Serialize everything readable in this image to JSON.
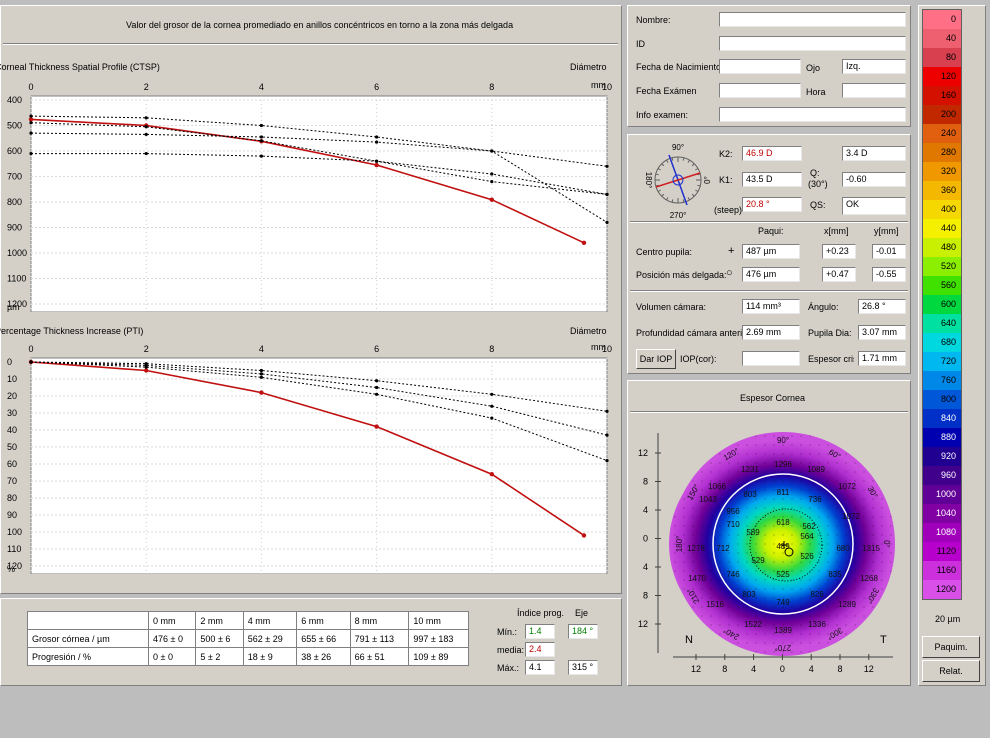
{
  "header": {
    "title": "Valor del grosor de la cornea promediado en anillos concéntricos en torno a la zona más delgada"
  },
  "ctsp": {
    "title": "Corneal Thickness Spatial Profile (CTSP)",
    "right_label": "Diámetro",
    "unit": "mm",
    "y_unit": "µm",
    "x_ticks": [
      "0",
      "2",
      "4",
      "6",
      "8",
      "10"
    ],
    "y_ticks": [
      "400",
      "500",
      "600",
      "700",
      "800",
      "900",
      "1000",
      "1100",
      "1200"
    ]
  },
  "pti": {
    "title": "Percentage Thickness Increase (PTI)",
    "right_label": "Diámetro",
    "unit": "mm",
    "y_unit": "%",
    "x_ticks": [
      "0",
      "2",
      "4",
      "6",
      "8",
      "10"
    ],
    "y_ticks": [
      "0",
      "10",
      "20",
      "30",
      "40",
      "50",
      "60",
      "70",
      "80",
      "90",
      "100",
      "110",
      "120"
    ]
  },
  "chart_data": [
    {
      "type": "line",
      "title": "Corneal Thickness Spatial Profile (CTSP)",
      "xlabel": "Diámetro mm",
      "ylabel": "µm",
      "xlim": [
        0,
        10
      ],
      "ylim": [
        1200,
        400
      ],
      "series": [
        {
          "style": "red-solid",
          "x": [
            0,
            2,
            4,
            6,
            8,
            9.6
          ],
          "values": [
            476,
            500,
            562,
            655,
            791,
            960
          ]
        },
        {
          "style": "dotted",
          "x": [
            0,
            2,
            4,
            6,
            8,
            10
          ],
          "values": [
            463,
            470,
            500,
            545,
            600,
            660
          ]
        },
        {
          "style": "dotted",
          "x": [
            0,
            2,
            4,
            6,
            8,
            10
          ],
          "values": [
            489,
            505,
            560,
            640,
            720,
            770
          ]
        },
        {
          "style": "dotted",
          "x": [
            0,
            2,
            4,
            6,
            8,
            10
          ],
          "values": [
            530,
            535,
            545,
            565,
            600,
            880
          ]
        },
        {
          "style": "dotted",
          "x": [
            0,
            2,
            4,
            6,
            8,
            10
          ],
          "values": [
            610,
            610,
            620,
            640,
            690,
            770
          ]
        }
      ]
    },
    {
      "type": "line",
      "title": "Percentage Thickness Increase (PTI)",
      "xlabel": "Diámetro mm",
      "ylabel": "%",
      "xlim": [
        0,
        10
      ],
      "ylim": [
        120,
        0
      ],
      "series": [
        {
          "style": "red-solid",
          "x": [
            0,
            2,
            4,
            6,
            8,
            9.6
          ],
          "values": [
            0,
            5,
            18,
            38,
            66,
            102
          ]
        },
        {
          "style": "dotted",
          "x": [
            0,
            2,
            4,
            6,
            8,
            10
          ],
          "values": [
            0,
            1,
            5,
            11,
            19,
            29
          ]
        },
        {
          "style": "dotted",
          "x": [
            0,
            2,
            4,
            6,
            8,
            10
          ],
          "values": [
            0,
            2,
            7,
            15,
            26,
            43
          ]
        },
        {
          "style": "dotted",
          "x": [
            0,
            2,
            4,
            6,
            8,
            10
          ],
          "values": [
            0,
            3,
            9,
            19,
            33,
            58
          ]
        }
      ]
    }
  ],
  "table": {
    "headers": [
      "",
      "0 mm",
      "2 mm",
      "4 mm",
      "6 mm",
      "8 mm",
      "10 mm"
    ],
    "rows": [
      [
        "Grosor córnea / µm",
        "476 ± 0",
        "500 ± 6",
        "562 ± 29",
        "655 ± 66",
        "791 ± 113",
        "997 ± 183"
      ],
      [
        "Progresión / %",
        "0 ± 0",
        "5 ± 2",
        "18 ± 9",
        "38 ± 26",
        "66 ± 51",
        "109 ± 89"
      ]
    ]
  },
  "progression": {
    "col1": "Índice prog.",
    "col2": "Eje",
    "min_label": "Mín.:",
    "min_value": "1.4",
    "min_axis": "184 °",
    "mean_label": "media:",
    "mean_value": "2.4",
    "max_label": "Máx.:",
    "max_value": "4.1",
    "max_axis": "315 °"
  },
  "patient": {
    "nombre_label": "Nombre:",
    "nombre_value": "",
    "id_label": "ID",
    "id_value": "",
    "fecha_nac_label": "Fecha de Nacimiento",
    "fecha_nac_value": "",
    "ojo_label": "Ojo",
    "ojo_value": "Izq.",
    "fecha_exam_label": "Fecha Exámen",
    "fecha_exam_value": "",
    "hora_label": "Hora",
    "hora_value": "",
    "info_label": "Info examen:",
    "info_value": ""
  },
  "keratometry": {
    "compass": {
      "top": "90°",
      "left": "180°",
      "bottom": "270°",
      "right": "0°"
    },
    "k2_label": "K2:",
    "k2_value": "46.9 D",
    "astig_value": "3.4 D",
    "k1_label": "K1:",
    "k1_value": "43.5 D",
    "q_label": "Q:",
    "q_sub": "(30°)",
    "q_value": "-0.60",
    "steep_label": "(steep)",
    "steep_value": "20.8 °",
    "qs_label": "QS:",
    "qs_value": "OK"
  },
  "pachy": {
    "col_paqui": "Paqui:",
    "col_x": "x[mm]",
    "col_y": "y[mm]",
    "centro_label": "Centro pupila:",
    "centro_symbol": "+",
    "centro_value": "487 µm",
    "centro_x": "+0.23",
    "centro_y": "-0.01",
    "delgada_label": "Posición más delgada:",
    "delgada_symbol": "○",
    "delgada_value": "476 µm",
    "delgada_x": "+0.47",
    "delgada_y": "-0.55"
  },
  "chamber": {
    "volumen_label": "Volumen cámara:",
    "volumen_value": "114 mm³",
    "angulo_label": "Ángulo:",
    "angulo_value": "26.8 °",
    "profundidad_label": "Profundidad cámara anterior",
    "profundidad_value": "2.69 mm",
    "pupila_label": "Pupila Dia:",
    "pupila_value": "3.07 mm",
    "iop_button": "Dar IOP",
    "iop_label": "IOP(cor):",
    "iop_value": "",
    "espesor_label": "Espesor crista",
    "espesor_value": "1.71 mm"
  },
  "map": {
    "title": "Espesor Cornea",
    "left_letter": "N",
    "right_letter": "T",
    "y_ticks": [
      "12",
      "8",
      "4",
      "0",
      "4",
      "8",
      "12"
    ],
    "x_ticks": [
      "12",
      "8",
      "4",
      "0",
      "4",
      "8",
      "12"
    ],
    "angle_labels": [
      "90°",
      "60°",
      "30°",
      "0°",
      "330°",
      "300°",
      "270°",
      "240°",
      "210°",
      "180°",
      "150°",
      "120°"
    ],
    "values": [
      "1296",
      "1231",
      "1089",
      "1066",
      "1072",
      "1043",
      "803",
      "811",
      "736",
      "956",
      "710",
      "618",
      "562",
      "1072",
      "589",
      "564",
      "1278",
      "712",
      "489",
      "526",
      "680",
      "1315",
      "529",
      "525",
      "1470",
      "746",
      "835",
      "1268",
      "803",
      "749",
      "826",
      "1516",
      "1289",
      "1522",
      "1336",
      "1389"
    ]
  },
  "scale": {
    "values": [
      "0",
      "40",
      "80",
      "120",
      "160",
      "200",
      "240",
      "280",
      "320",
      "360",
      "400",
      "440",
      "480",
      "520",
      "560",
      "600",
      "640",
      "680",
      "720",
      "760",
      "800",
      "840",
      "880",
      "920",
      "960",
      "1000",
      "1040",
      "1080",
      "1120",
      "1160",
      "1200"
    ],
    "colors": [
      "#ff6f86",
      "#ee6070",
      "#d84050",
      "#ee0000",
      "#d41000",
      "#c22800",
      "#e06010",
      "#e07800",
      "#f09800",
      "#f4b800",
      "#f4d800",
      "#f4f000",
      "#c8f000",
      "#8cee00",
      "#40e000",
      "#00d840",
      "#00e0a0",
      "#00d8e0",
      "#00b8f0",
      "#0088e8",
      "#0058d8",
      "#0030c8",
      "#0000b0",
      "#200090",
      "#40008c",
      "#600096",
      "#8000a4",
      "#a000ba",
      "#b800cc",
      "#cc30dc",
      "#d850e8"
    ],
    "unit": "20 µm",
    "paquim_button": "Paquim.",
    "relat_button": "Relat."
  }
}
